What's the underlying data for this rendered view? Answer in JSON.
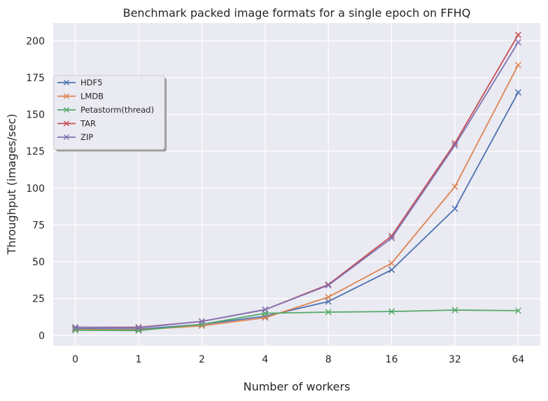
{
  "chart_data": {
    "type": "line",
    "title": "Benchmark packed image formats for a single epoch on FFHQ",
    "xlabel": "Number of workers",
    "ylabel": "Throughput (images/sec)",
    "categories": [
      "0",
      "1",
      "2",
      "4",
      "8",
      "16",
      "32",
      "64"
    ],
    "ylim": [
      -7,
      212
    ],
    "yticks": [
      0,
      25,
      50,
      75,
      100,
      125,
      150,
      175,
      200
    ],
    "grid": true,
    "legend_position": "upper-left",
    "marker": "x",
    "series": [
      {
        "name": "HDF5",
        "color": "#4c72b0",
        "values": [
          4.5,
          4.2,
          7.5,
          13,
          23,
          44.5,
          86,
          165
        ]
      },
      {
        "name": "LMDB",
        "color": "#dd8452",
        "values": [
          4,
          3.8,
          6.5,
          12,
          26,
          49,
          101,
          183.5
        ]
      },
      {
        "name": "Petastorm(thread)",
        "color": "#55a868",
        "values": [
          3.5,
          3.3,
          7.5,
          15,
          15.8,
          16.2,
          17.2,
          16.8
        ]
      },
      {
        "name": "TAR",
        "color": "#c44e52",
        "values": [
          5.5,
          5.5,
          9.5,
          17.5,
          34.5,
          67.5,
          130.5,
          204
        ]
      },
      {
        "name": "ZIP",
        "color": "#8172b3",
        "values": [
          5.5,
          5.2,
          9.5,
          17.5,
          34,
          66,
          129,
          199
        ]
      }
    ]
  }
}
